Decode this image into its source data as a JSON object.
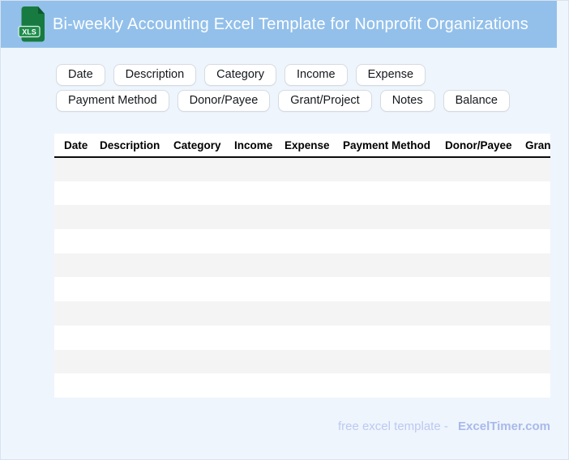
{
  "header": {
    "title": "Bi-weekly Accounting Excel Template for Nonprofit Organizations",
    "file_badge": "XLS"
  },
  "tags": [
    "Date",
    "Description",
    "Category",
    "Income",
    "Expense",
    "Payment Method",
    "Donor/Payee",
    "Grant/Project",
    "Notes",
    "Balance"
  ],
  "table": {
    "columns": [
      "Date",
      "Description",
      "Category",
      "Income",
      "Expense",
      "Payment Method",
      "Donor/Payee",
      "Grant/Project"
    ],
    "empty_row_count": 10
  },
  "footer": {
    "credit_text": "free excel template -",
    "brand": "ExcelTimer.com"
  },
  "colors": {
    "header_bg": "#93c0ea",
    "page_bg": "#eef5fd",
    "chip_border": "#d5dbe2",
    "row_stripe": "#f4f4f5",
    "header_border": "#0b0b0b",
    "icon_green": "#177b41",
    "icon_fold_green": "#0e5a2e",
    "icon_badge_green": "#1e8c4b",
    "footer_text": "#bdc9f0",
    "footer_brand": "#a9b9e9"
  }
}
